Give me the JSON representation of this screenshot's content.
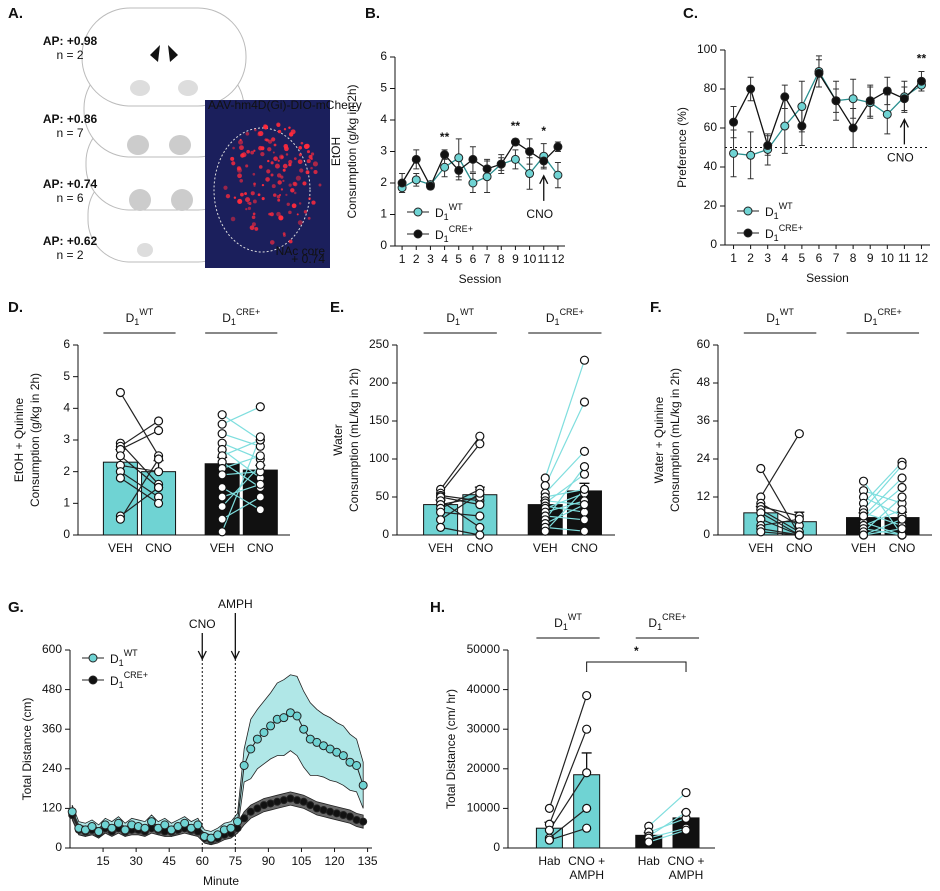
{
  "panel_a": {
    "panel": "A.",
    "sections": [
      {
        "ap": "AP: +0.98",
        "n": "n = 2"
      },
      {
        "ap": "AP: +0.86",
        "n": "n = 7"
      },
      {
        "ap": "AP: +0.74",
        "n": "n = 6"
      },
      {
        "ap": "AP: +0.62",
        "n": "n = 2"
      }
    ],
    "image_label": "AAV-hm4D(Gi)-DIO-mCherry",
    "image_region": "NAc core",
    "image_ap": "+ 0.74"
  },
  "chart_data": [
    {
      "type": "line",
      "panel": "B.",
      "y_label": [
        "EtOH",
        "Consumption (g/kg in 2h)"
      ],
      "x_label": "Session",
      "x": [
        1,
        2,
        3,
        4,
        5,
        6,
        7,
        8,
        9,
        10,
        11,
        12
      ],
      "xlim": [
        0.5,
        12.5
      ],
      "xticks": [
        1,
        2,
        3,
        4,
        5,
        6,
        7,
        8,
        9,
        10,
        11,
        12
      ],
      "ylim": [
        0,
        6
      ],
      "yticks": [
        0,
        1,
        2,
        3,
        4,
        5,
        6
      ],
      "legend": "lower left",
      "series": [
        {
          "name": "D",
          "name_sub": "1",
          "name_sup": "WT",
          "color": "#6fd3d3",
          "values": [
            1.85,
            2.1,
            1.95,
            2.5,
            2.8,
            2.0,
            2.2,
            2.6,
            2.75,
            2.3,
            2.85,
            2.25
          ],
          "errors": [
            0.15,
            0.2,
            0.1,
            0.3,
            0.6,
            0.3,
            0.5,
            0.2,
            0.3,
            0.5,
            0.4,
            0.4
          ]
        },
        {
          "name": "D",
          "name_sub": "1",
          "name_sup": "CRE+",
          "color": "#111111",
          "values": [
            2.0,
            2.75,
            1.9,
            2.9,
            2.4,
            2.75,
            2.45,
            2.6,
            3.3,
            3.0,
            2.7,
            3.15
          ],
          "errors": [
            0.3,
            0.3,
            0.1,
            0.15,
            0.3,
            0.4,
            0.3,
            0.3,
            0.1,
            0.4,
            0.2,
            0.15
          ]
        }
      ],
      "annotations": [
        {
          "text": "**",
          "x": 4
        },
        {
          "text": "**",
          "x": 9
        },
        {
          "text": "*",
          "x": 11
        }
      ],
      "arrow_label": {
        "text": "CNO",
        "x": 11
      }
    },
    {
      "type": "line",
      "panel": "C.",
      "y_label": [
        "Preference (%)"
      ],
      "x_label": "Session",
      "x": [
        1,
        2,
        3,
        4,
        5,
        6,
        7,
        8,
        9,
        10,
        11,
        12
      ],
      "xlim": [
        0.5,
        12.5
      ],
      "xticks": [
        1,
        2,
        3,
        4,
        5,
        6,
        7,
        8,
        9,
        10,
        11,
        12
      ],
      "ylim": [
        0,
        100
      ],
      "yticks": [
        0,
        20,
        40,
        60,
        80,
        100
      ],
      "legend": "lower left",
      "reference_line": 50,
      "series": [
        {
          "name": "D",
          "name_sub": "1",
          "name_sup": "WT",
          "color": "#6fd3d3",
          "values": [
            47,
            46,
            49,
            61,
            71,
            89,
            74,
            75,
            73,
            67,
            76,
            82
          ],
          "errors": [
            12,
            12,
            8,
            14,
            13,
            8,
            10,
            10,
            8,
            10,
            8,
            3
          ]
        },
        {
          "name": "D",
          "name_sub": "1",
          "name_sup": "CRE+",
          "color": "#111111",
          "values": [
            63,
            80,
            51,
            76,
            61,
            88,
            74,
            60,
            74,
            79,
            75,
            84
          ],
          "errors": [
            8,
            6,
            5,
            6,
            10,
            7,
            6,
            10,
            8,
            7,
            6,
            5
          ]
        }
      ],
      "annotations": [
        {
          "text": "**",
          "x": 12
        }
      ],
      "arrow_label": {
        "text": "CNO",
        "x": 11
      }
    },
    {
      "type": "paired-bar",
      "panel": "D.",
      "y_label": [
        "EtOH +  Quinine",
        "Consumption (g/kg in 2h)"
      ],
      "ylim": [
        0,
        6
      ],
      "yticks": [
        0,
        1,
        2,
        3,
        4,
        5,
        6
      ],
      "conditions": [
        [
          "VEH"
        ],
        [
          "CNO"
        ]
      ],
      "groups": [
        {
          "name": "D",
          "name_sub": "1",
          "name_sup": "WT",
          "color": "#6fd3d3",
          "line_color": "#222222",
          "values": [
            2.3,
            2.0
          ],
          "errors": [
            0.4,
            0.35
          ],
          "subjects": [
            [
              4.5,
              2.5
            ],
            [
              2.9,
              1.6
            ],
            [
              2.8,
              3.6
            ],
            [
              2.7,
              3.3
            ],
            [
              2.5,
              1.5
            ],
            [
              2.2,
              2.0
            ],
            [
              2.0,
              1.2
            ],
            [
              1.8,
              1.0
            ],
            [
              0.6,
              1.5
            ],
            [
              0.5,
              2.4
            ]
          ]
        },
        {
          "name": "D",
          "name_sub": "1",
          "name_sup": "CRE+",
          "color": "#111111",
          "line_color": "#7fdede",
          "values": [
            2.25,
            2.05
          ],
          "errors": [
            0.2,
            0.15
          ],
          "subjects": [
            [
              3.8,
              3.0
            ],
            [
              3.5,
              4.05
            ],
            [
              3.2,
              2.8
            ],
            [
              2.9,
              2.4
            ],
            [
              2.7,
              1.8
            ],
            [
              2.5,
              3.0
            ],
            [
              2.3,
              1.5
            ],
            [
              2.1,
              2.5
            ],
            [
              1.9,
              2.0
            ],
            [
              1.5,
              0.8
            ],
            [
              1.2,
              1.6
            ],
            [
              0.9,
              2.2
            ],
            [
              0.5,
              1.2
            ],
            [
              0.1,
              3.1
            ]
          ]
        }
      ]
    },
    {
      "type": "paired-bar",
      "panel": "E.",
      "y_label": [
        "Water",
        "Consumption (mL/kg in 2h)"
      ],
      "ylim": [
        0,
        250
      ],
      "yticks": [
        0,
        50,
        100,
        150,
        200,
        250
      ],
      "conditions": [
        [
          "VEH"
        ],
        [
          "CNO"
        ]
      ],
      "groups": [
        {
          "name": "D",
          "name_sub": "1",
          "name_sup": "WT",
          "color": "#6fd3d3",
          "line_color": "#222222",
          "values": [
            40,
            53
          ],
          "errors": [
            6,
            10
          ],
          "subjects": [
            [
              60,
              130
            ],
            [
              55,
              120
            ],
            [
              52,
              45
            ],
            [
              50,
              40
            ],
            [
              45,
              10
            ],
            [
              40,
              50
            ],
            [
              35,
              60
            ],
            [
              30,
              25
            ],
            [
              20,
              55
            ],
            [
              10,
              0
            ]
          ]
        },
        {
          "name": "D",
          "name_sub": "1",
          "name_sup": "CRE+",
          "color": "#111111",
          "line_color": "#7fdede",
          "values": [
            40,
            58
          ],
          "errors": [
            5,
            10
          ],
          "subjects": [
            [
              75,
              230
            ],
            [
              65,
              175
            ],
            [
              55,
              110
            ],
            [
              50,
              60
            ],
            [
              45,
              40
            ],
            [
              42,
              80
            ],
            [
              38,
              30
            ],
            [
              35,
              55
            ],
            [
              30,
              45
            ],
            [
              25,
              20
            ],
            [
              20,
              90
            ],
            [
              15,
              40
            ],
            [
              10,
              5
            ],
            [
              5,
              60
            ]
          ]
        }
      ]
    },
    {
      "type": "paired-bar",
      "panel": "F.",
      "y_label": [
        "Water + Quinine",
        "Consumption (mL/kg in 2h)"
      ],
      "ylim": [
        0,
        60
      ],
      "yticks": [
        0,
        12,
        24,
        36,
        48,
        60
      ],
      "conditions": [
        [
          "VEH"
        ],
        [
          "CNO"
        ]
      ],
      "groups": [
        {
          "name": "D",
          "name_sub": "1",
          "name_sup": "WT",
          "color": "#6fd3d3",
          "line_color": "#222222",
          "values": [
            7,
            4.2
          ],
          "errors": [
            2,
            3
          ],
          "subjects": [
            [
              21,
              0
            ],
            [
              12,
              32
            ],
            [
              10,
              3
            ],
            [
              9,
              6
            ],
            [
              8,
              1
            ],
            [
              7,
              0
            ],
            [
              5,
              0
            ],
            [
              3,
              5
            ],
            [
              2,
              0
            ],
            [
              1,
              0
            ]
          ]
        },
        {
          "name": "D",
          "name_sub": "1",
          "name_sup": "CRE+",
          "color": "#111111",
          "line_color": "#7fdede",
          "values": [
            5.5,
            5.5
          ],
          "errors": [
            1.5,
            1.7
          ],
          "subjects": [
            [
              17,
              0
            ],
            [
              14,
              10
            ],
            [
              12,
              6
            ],
            [
              10,
              23
            ],
            [
              8,
              22
            ],
            [
              7,
              3
            ],
            [
              5,
              15
            ],
            [
              4,
              0
            ],
            [
              3,
              8
            ],
            [
              2,
              0
            ],
            [
              1,
              12
            ],
            [
              0,
              2
            ],
            [
              0,
              5
            ],
            [
              6,
              18
            ]
          ]
        }
      ]
    },
    {
      "type": "line-band",
      "panel": "G.",
      "y_label": [
        "Total Distance (cm)"
      ],
      "x_label": "Minute",
      "xlim": [
        0,
        137
      ],
      "xticks": [
        15,
        30,
        45,
        60,
        75,
        90,
        105,
        120,
        135
      ],
      "ylim": [
        0,
        600
      ],
      "yticks": [
        0,
        120,
        240,
        360,
        480,
        600
      ],
      "legend": "upper left",
      "x": [
        1,
        4,
        7,
        10,
        13,
        16,
        19,
        22,
        25,
        28,
        31,
        34,
        37,
        40,
        43,
        46,
        49,
        52,
        55,
        58,
        61,
        64,
        67,
        70,
        73,
        76,
        79,
        82,
        85,
        88,
        91,
        94,
        97,
        100,
        103,
        106,
        109,
        112,
        115,
        118,
        121,
        124,
        127,
        130,
        133
      ],
      "events": [
        {
          "text": "CNO",
          "x": 60
        },
        {
          "text": "AMPH",
          "x": 75
        }
      ],
      "series": [
        {
          "name": "D",
          "name_sub": "1",
          "name_sup": "WT",
          "color": "#6fd3d3",
          "values": [
            110,
            60,
            55,
            65,
            50,
            70,
            60,
            75,
            55,
            70,
            65,
            60,
            80,
            60,
            70,
            55,
            65,
            75,
            60,
            70,
            35,
            30,
            40,
            55,
            60,
            80,
            250,
            300,
            330,
            350,
            370,
            390,
            395,
            410,
            400,
            360,
            330,
            320,
            310,
            300,
            290,
            280,
            260,
            250,
            190
          ],
          "errors": [
            20,
            20,
            20,
            20,
            20,
            20,
            20,
            20,
            20,
            20,
            20,
            20,
            20,
            20,
            20,
            20,
            20,
            20,
            20,
            20,
            20,
            20,
            20,
            20,
            20,
            25,
            50,
            90,
            90,
            95,
            100,
            110,
            115,
            115,
            120,
            115,
            110,
            100,
            95,
            95,
            90,
            90,
            85,
            80,
            70
          ]
        },
        {
          "name": "D",
          "name_sub": "1",
          "name_sup": "CRE+",
          "color": "#111111",
          "values": [
            100,
            55,
            50,
            55,
            45,
            60,
            50,
            60,
            50,
            55,
            55,
            50,
            60,
            55,
            50,
            50,
            55,
            60,
            55,
            50,
            30,
            25,
            30,
            40,
            45,
            60,
            90,
            110,
            120,
            130,
            135,
            140,
            145,
            150,
            145,
            140,
            130,
            120,
            115,
            110,
            105,
            100,
            95,
            85,
            80
          ],
          "errors": [
            15,
            15,
            15,
            15,
            15,
            15,
            15,
            15,
            15,
            15,
            15,
            15,
            15,
            15,
            15,
            15,
            15,
            15,
            15,
            15,
            15,
            15,
            15,
            15,
            15,
            15,
            20,
            20,
            20,
            20,
            20,
            20,
            20,
            20,
            20,
            20,
            20,
            20,
            20,
            20,
            20,
            20,
            20,
            20,
            20
          ]
        }
      ]
    },
    {
      "type": "paired-bar",
      "panel": "H.",
      "y_label": [
        "Total Distance (cm/ hr)"
      ],
      "ylim": [
        0,
        50000
      ],
      "yticks": [
        0,
        10000,
        20000,
        30000,
        40000,
        50000
      ],
      "conditions": [
        [
          "Hab"
        ],
        [
          "CNO +",
          "AMPH"
        ]
      ],
      "significance": {
        "text": "*"
      },
      "groups": [
        {
          "name": "D",
          "name_sub": "1",
          "name_sup": "WT",
          "color": "#6fd3d3",
          "line_color": "#222222",
          "values": [
            5000,
            18500
          ],
          "errors": [
            1500,
            5500
          ],
          "subjects": [
            [
              10000,
              38500
            ],
            [
              6000,
              30000
            ],
            [
              4500,
              19000
            ],
            [
              2500,
              10000
            ],
            [
              2000,
              5000
            ]
          ]
        },
        {
          "name": "D",
          "name_sub": "1",
          "name_sup": "CRE+",
          "color": "#111111",
          "line_color": "#7fdede",
          "values": [
            3200,
            7600
          ],
          "errors": [
            700,
            1500
          ],
          "subjects": [
            [
              5500,
              14000
            ],
            [
              4000,
              7500
            ],
            [
              3000,
              9000
            ],
            [
              2500,
              5000
            ],
            [
              1500,
              4500
            ]
          ]
        }
      ]
    }
  ]
}
